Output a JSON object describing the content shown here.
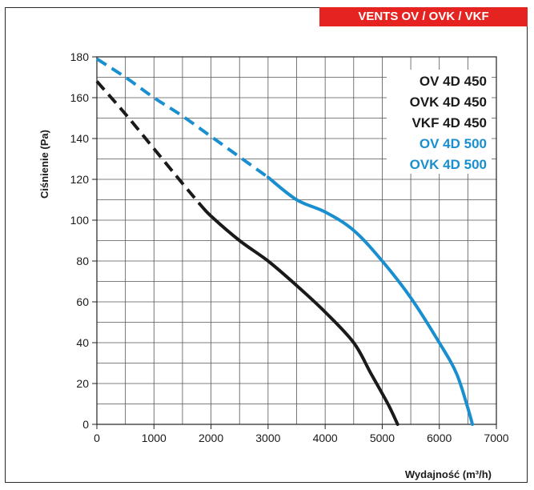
{
  "badge": {
    "text": "VENTS OV / OVK / VKF",
    "color": "#e52421"
  },
  "chart_data": {
    "type": "line",
    "xlabel": "Wydajność (m³/h)",
    "ylabel": "Ciśnienie (Pa)",
    "xlim": [
      0,
      7000
    ],
    "ylim": [
      0,
      180
    ],
    "x_major_ticks": [
      0,
      1000,
      2000,
      3000,
      4000,
      5000,
      6000,
      7000
    ],
    "y_major_ticks": [
      0,
      20,
      40,
      60,
      80,
      100,
      120,
      140,
      160,
      180
    ],
    "grid": true,
    "grid_step_x": 500,
    "grid_step_y": 10,
    "legend_position": "top-right",
    "legend_entries": [
      {
        "text": "OV 4D 450",
        "color": "#1a1a1a"
      },
      {
        "text": "OVK 4D 450",
        "color": "#1a1a1a"
      },
      {
        "text": "VKF 4D 450",
        "color": "#1a1a1a"
      },
      {
        "text": "OV 4D 500",
        "color": "#1a8fd0"
      },
      {
        "text": "OVK 4D 500",
        "color": "#1a8fd0"
      }
    ],
    "series": [
      {
        "color": "#1a1a1a",
        "dashed_until_x": 1800,
        "points": [
          [
            0,
            168
          ],
          [
            500,
            152
          ],
          [
            1000,
            135
          ],
          [
            1500,
            118
          ],
          [
            1800,
            108
          ],
          [
            2000,
            102
          ],
          [
            2500,
            90
          ],
          [
            3000,
            80
          ],
          [
            3500,
            68
          ],
          [
            4000,
            55
          ],
          [
            4500,
            40
          ],
          [
            4800,
            25
          ],
          [
            5100,
            10
          ],
          [
            5270,
            0
          ]
        ]
      },
      {
        "color": "#1a8fd0",
        "dashed_until_x": 3000,
        "points": [
          [
            0,
            179
          ],
          [
            500,
            170
          ],
          [
            1000,
            160
          ],
          [
            1500,
            151
          ],
          [
            2000,
            141
          ],
          [
            2500,
            131
          ],
          [
            3000,
            121
          ],
          [
            3500,
            110
          ],
          [
            4000,
            104
          ],
          [
            4500,
            95
          ],
          [
            5000,
            80
          ],
          [
            5500,
            62
          ],
          [
            6000,
            40
          ],
          [
            6300,
            25
          ],
          [
            6500,
            8
          ],
          [
            6580,
            0
          ]
        ]
      }
    ]
  }
}
